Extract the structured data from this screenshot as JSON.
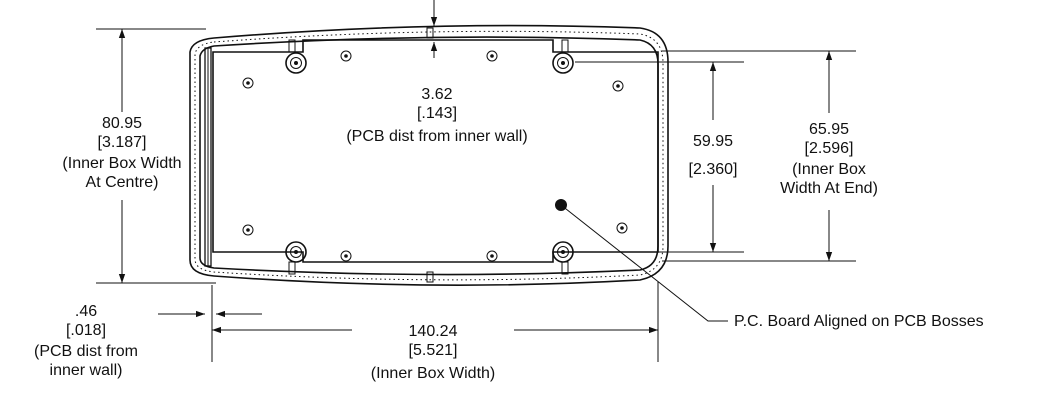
{
  "dimensions": {
    "pcb_top": {
      "value_mm": "3.62",
      "value_in": "[.143]",
      "note": "(PCB dist from inner wall)"
    },
    "inner_width_centre": {
      "value_mm": "80.95",
      "value_in": "[3.187]",
      "note_line1": "(Inner Box Width",
      "note_line2": "At  Centre)"
    },
    "pcb_height": {
      "value_mm": "59.95",
      "value_in": "[2.360]"
    },
    "inner_width_end": {
      "value_mm": "65.95",
      "value_in": "[2.596]",
      "note_line1": "(Inner Box",
      "note_line2": "Width At End)"
    },
    "pcb_left": {
      "value_mm": ".46",
      "value_in": "[.018]",
      "note_line1": "(PCB dist from",
      "note_line2": "inner wall)"
    },
    "inner_length": {
      "value_mm": "140.24",
      "value_in": "[5.521]",
      "note": "(Inner Box Width)"
    }
  },
  "callout": {
    "text": "P.C. Board Aligned on PCB Bosses"
  },
  "colors": {
    "line": "#111111",
    "background": "#ffffff"
  }
}
